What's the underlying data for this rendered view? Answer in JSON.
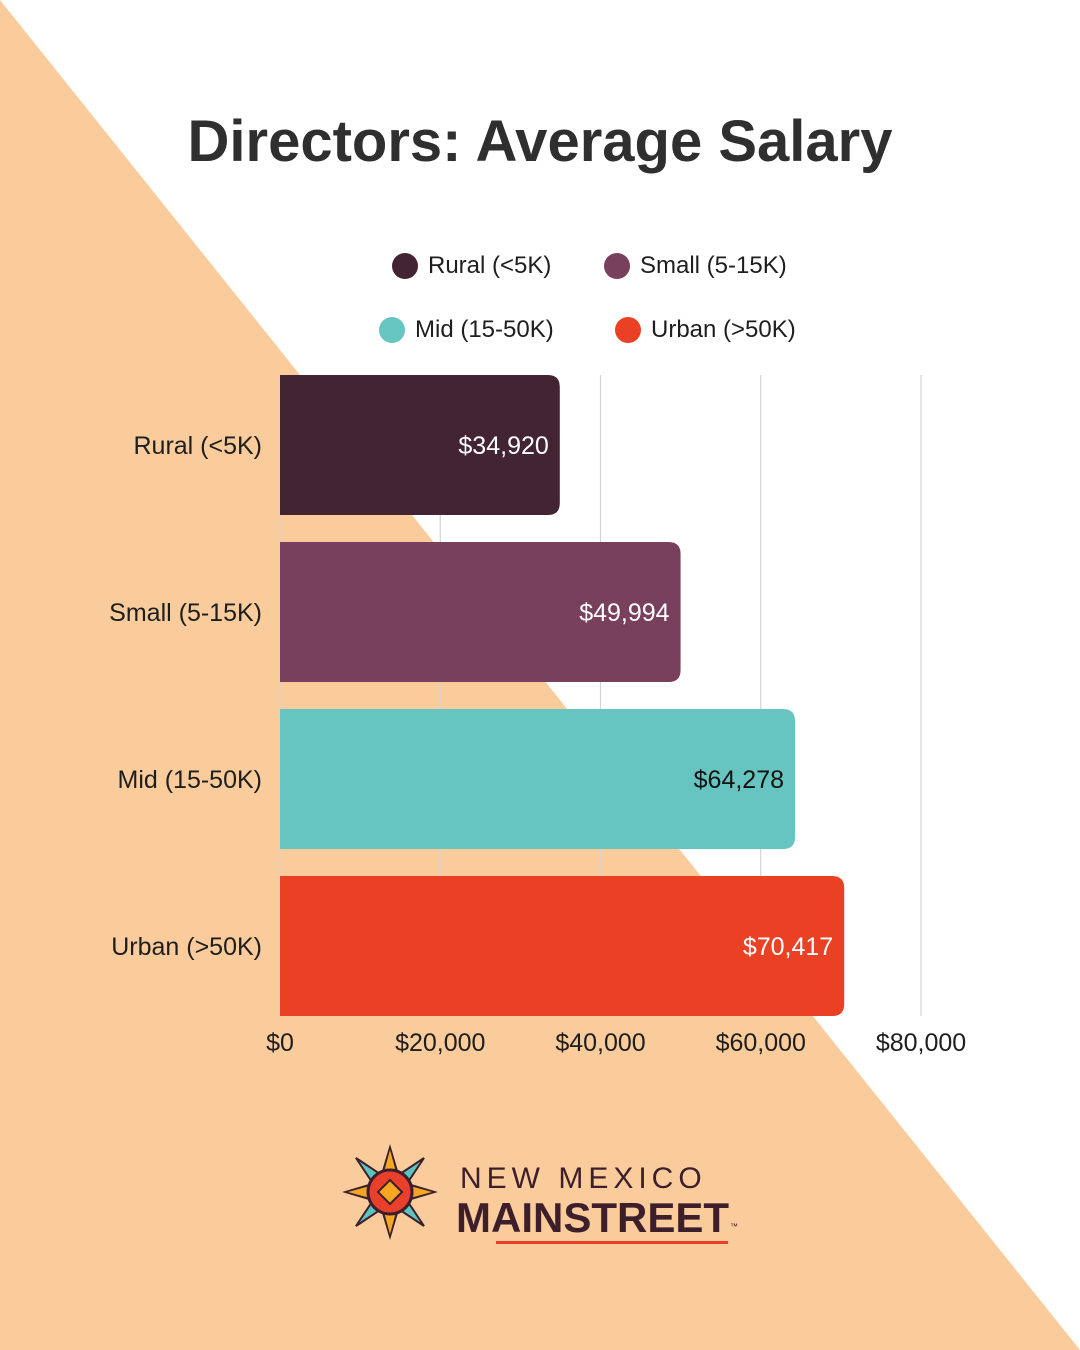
{
  "chart_data": {
    "type": "bar",
    "orientation": "horizontal",
    "title": "Directors: Average Salary",
    "categories": [
      "Rural (<5K)",
      "Small (5-15K)",
      "Mid (15-50K)",
      "Urban (>50K)"
    ],
    "values": [
      34920,
      49994,
      64278,
      70417
    ],
    "value_labels": [
      "$34,920",
      "$49,994",
      "$64,278",
      "$70,417"
    ],
    "colors": [
      "#432433",
      "#78405d",
      "#66c5c0",
      "#ea4125"
    ],
    "value_label_colors": [
      "#ffffff",
      "#ffffff",
      "#111111",
      "#ffffff"
    ],
    "xlim": [
      0,
      80000
    ],
    "xticks": [
      0,
      20000,
      40000,
      60000,
      80000
    ],
    "xtick_labels": [
      "$0",
      "$20,000",
      "$40,000",
      "$60,000",
      "$80,000"
    ],
    "grid": true,
    "legend_position": "top",
    "legend": [
      {
        "label": "Rural (<5K)",
        "color": "#432433"
      },
      {
        "label": "Small (5-15K)",
        "color": "#78405d"
      },
      {
        "label": "Mid (15-50K)",
        "color": "#66c5c0"
      },
      {
        "label": "Urban (>50K)",
        "color": "#ea4125"
      }
    ]
  },
  "background": {
    "triangle_color": "#facb9b",
    "page_color": "#ffffff"
  },
  "logo": {
    "line1": "NEW MEXICO",
    "line2": "MAINSTREET",
    "trademark": "™",
    "colors": [
      "#e8402a",
      "#f5a623",
      "#5bc4c0",
      "#3d1f2c"
    ]
  }
}
